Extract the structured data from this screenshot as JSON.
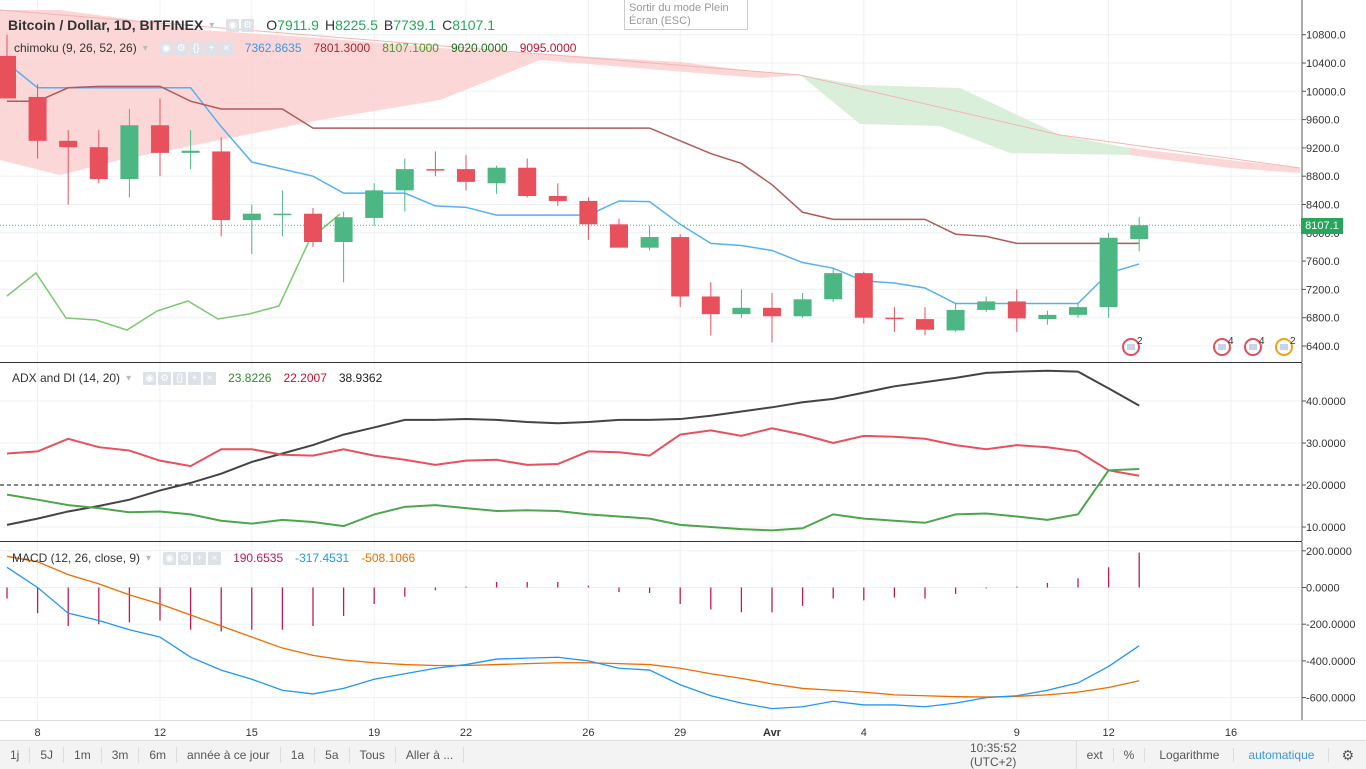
{
  "main": {
    "symbol": "Bitcoin / Dollar, 1D, BITFINEX",
    "ohlc": [
      {
        "label": "O",
        "value": "7911.9"
      },
      {
        "label": "H",
        "value": "8225.5"
      },
      {
        "label": "B",
        "value": "7739.1"
      },
      {
        "label": "C",
        "value": "8107.1"
      }
    ],
    "ichimoku_label": "chimoku (9, 26, 52, 26)",
    "ichimoku_values": [
      {
        "value": "7362.8635",
        "color": "#3a98e0"
      },
      {
        "value": "7801.3000",
        "color": "#a52a2a"
      },
      {
        "value": "8107.1000",
        "color": "#4c9a2a"
      },
      {
        "value": "9020.0000",
        "color": "#1f6d1f"
      },
      {
        "value": "9095.0000",
        "color": "#c8102e"
      }
    ],
    "last_price_tag": "8107.1",
    "price_ticks": [
      "10800.0",
      "10400.0",
      "10000.0",
      "9600.0",
      "9200.0",
      "8800.0",
      "8400.0",
      "8000.0",
      "7600.0",
      "7200.0",
      "6800.0",
      "6400.0"
    ],
    "event_badges": [
      "2",
      "4",
      "4",
      "2"
    ]
  },
  "adx": {
    "label": "ADX and DI (14, 20)",
    "values": [
      {
        "value": "23.8226",
        "color": "#2e8b2e"
      },
      {
        "value": "22.2007",
        "color": "#c8102e"
      },
      {
        "value": "38.9362",
        "color": "#222222"
      }
    ],
    "ticks": [
      "40.0000",
      "30.0000",
      "20.0000",
      "10.0000"
    ]
  },
  "macd": {
    "label": "MACD (12, 26, close, 9)",
    "values": [
      {
        "value": "190.6535",
        "color": "#c2185b"
      },
      {
        "value": "-317.4531",
        "color": "#2196f3"
      },
      {
        "value": "-508.1066",
        "color": "#ef6c00"
      }
    ],
    "ticks": [
      "200.0000",
      "0.0000",
      "-200.0000",
      "-400.0000",
      "-600.0000"
    ]
  },
  "x_axis": {
    "labels": [
      "8",
      "12",
      "15",
      "19",
      "22",
      "26",
      "29",
      "Avr",
      "4",
      "9",
      "12",
      "16"
    ]
  },
  "toast": {
    "line1": "Sortir du mode Plein",
    "line2": "Écran (ESC)"
  },
  "bottom": {
    "timeframes": [
      "1j",
      "5J",
      "1m",
      "3m",
      "6m",
      "année à ce jour",
      "1a",
      "5a",
      "Tous",
      "Aller à ..."
    ],
    "clock": "10:35:52 (UTC+2)",
    "ext": "ext",
    "percent": "%",
    "log": "Logarithme",
    "auto": "automatique"
  },
  "colors": {
    "up": "#4db784",
    "down": "#e8505b",
    "tenkan": "#55b1f0",
    "kijun": "#b05a5a",
    "chikou": "#7bc96f",
    "cloud_red": "#fbd0d0",
    "cloud_green": "#d4ecd4"
  },
  "chart_data": {
    "type": "candlestick",
    "candles": [
      {
        "d": "7 mar",
        "o": 10500,
        "h": 10800,
        "l": 9900,
        "c": 9900
      },
      {
        "d": "8 mar",
        "o": 9920,
        "h": 10100,
        "l": 9050,
        "c": 9300
      },
      {
        "d": "9 mar",
        "o": 9300,
        "h": 9450,
        "l": 8400,
        "c": 9210
      },
      {
        "d": "10 mar",
        "o": 9210,
        "h": 9450,
        "l": 8700,
        "c": 8760
      },
      {
        "d": "11 mar",
        "o": 8760,
        "h": 9750,
        "l": 8500,
        "c": 9520
      },
      {
        "d": "12 mar",
        "o": 9520,
        "h": 9900,
        "l": 8800,
        "c": 9130
      },
      {
        "d": "13 mar",
        "o": 9130,
        "h": 9450,
        "l": 8900,
        "c": 9160
      },
      {
        "d": "14 mar",
        "o": 9150,
        "h": 9350,
        "l": 7950,
        "c": 8180
      },
      {
        "d": "15 mar",
        "o": 8180,
        "h": 8400,
        "l": 7700,
        "c": 8270
      },
      {
        "d": "16 mar",
        "o": 8260,
        "h": 8600,
        "l": 7950,
        "c": 8270
      },
      {
        "d": "17 mar",
        "o": 8270,
        "h": 8350,
        "l": 7800,
        "c": 7870
      },
      {
        "d": "18 mar",
        "o": 7870,
        "h": 8300,
        "l": 7300,
        "c": 8220
      },
      {
        "d": "19 mar",
        "o": 8210,
        "h": 8700,
        "l": 8100,
        "c": 8600
      },
      {
        "d": "20 mar",
        "o": 8600,
        "h": 9050,
        "l": 8300,
        "c": 8900
      },
      {
        "d": "21 mar",
        "o": 8900,
        "h": 9150,
        "l": 8800,
        "c": 8880
      },
      {
        "d": "22 mar",
        "o": 8900,
        "h": 9100,
        "l": 8600,
        "c": 8720
      },
      {
        "d": "23 mar",
        "o": 8700,
        "h": 8950,
        "l": 8550,
        "c": 8920
      },
      {
        "d": "24 mar",
        "o": 8920,
        "h": 9050,
        "l": 8500,
        "c": 8520
      },
      {
        "d": "25 mar",
        "o": 8520,
        "h": 8700,
        "l": 8380,
        "c": 8450
      },
      {
        "d": "26 mar",
        "o": 8450,
        "h": 8500,
        "l": 7900,
        "c": 8120
      },
      {
        "d": "27 mar",
        "o": 8120,
        "h": 8200,
        "l": 7800,
        "c": 7790
      },
      {
        "d": "28 mar",
        "o": 7790,
        "h": 8100,
        "l": 7750,
        "c": 7940
      },
      {
        "d": "29 mar",
        "o": 7940,
        "h": 7980,
        "l": 6950,
        "c": 7100
      },
      {
        "d": "30 mar",
        "o": 7100,
        "h": 7300,
        "l": 6550,
        "c": 6850
      },
      {
        "d": "31 mar",
        "o": 6850,
        "h": 7200,
        "l": 6800,
        "c": 6940
      },
      {
        "d": "1 avr",
        "o": 6940,
        "h": 7150,
        "l": 6450,
        "c": 6820
      },
      {
        "d": "2 avr",
        "o": 6820,
        "h": 7150,
        "l": 6800,
        "c": 7060
      },
      {
        "d": "3 avr",
        "o": 7060,
        "h": 7500,
        "l": 7020,
        "c": 7430
      },
      {
        "d": "4 avr",
        "o": 7430,
        "h": 7450,
        "l": 6720,
        "c": 6800
      },
      {
        "d": "5 avr",
        "o": 6800,
        "h": 6950,
        "l": 6600,
        "c": 6780
      },
      {
        "d": "6 avr",
        "o": 6780,
        "h": 6950,
        "l": 6550,
        "c": 6630
      },
      {
        "d": "7 avr",
        "o": 6620,
        "h": 7000,
        "l": 6600,
        "c": 6910
      },
      {
        "d": "8 avr",
        "o": 6910,
        "h": 7100,
        "l": 6880,
        "c": 7030
      },
      {
        "d": "9 avr",
        "o": 7030,
        "h": 7200,
        "l": 6600,
        "c": 6790
      },
      {
        "d": "10 avr",
        "o": 6780,
        "h": 6900,
        "l": 6700,
        "c": 6840
      },
      {
        "d": "11 avr",
        "o": 6840,
        "h": 7000,
        "l": 6800,
        "c": 6950
      },
      {
        "d": "12 avr",
        "o": 6950,
        "h": 8000,
        "l": 6800,
        "c": 7930
      },
      {
        "d": "13 avr",
        "o": 7911.9,
        "h": 8225.5,
        "l": 7739.1,
        "c": 8107.1
      }
    ],
    "tenkan": [
      10400,
      10050,
      10050,
      10050,
      10050,
      10050,
      10050,
      9500,
      9000,
      8900,
      8800,
      8560,
      8560,
      8560,
      8380,
      8360,
      8250,
      8250,
      8250,
      8250,
      8450,
      8440,
      8120,
      7850,
      7820,
      7750,
      7580,
      7500,
      7320,
      7290,
      7220,
      7000,
      7000,
      7000,
      7000,
      7000,
      7430,
      7560
    ],
    "kijun": [
      9860,
      9860,
      10050,
      10070,
      10070,
      10070,
      9860,
      9750,
      9750,
      9750,
      9480,
      9480,
      9480,
      9480,
      9480,
      9480,
      9480,
      9480,
      9480,
      9480,
      9480,
      9480,
      9300,
      9120,
      8980,
      8680,
      8290,
      8190,
      8190,
      8190,
      8190,
      7980,
      7950,
      7850,
      7850,
      7850,
      7850,
      7850
    ],
    "chikou": [
      7040,
      7430,
      6790,
      6780,
      6620,
      6910,
      7030,
      6790,
      6840,
      6950,
      7930,
      8107
    ],
    "adx_di": {
      "adx": [
        10.5,
        12,
        13.7,
        15,
        16.5,
        18.7,
        20.5,
        22.7,
        25.5,
        27.5,
        29.5,
        32,
        33.7,
        35.5,
        35.5,
        35.7,
        35.5,
        35,
        34.7,
        35,
        35.5,
        35.5,
        35.7,
        36.5,
        37.5,
        38.5,
        39.7,
        40.5,
        42,
        43.5,
        44.5,
        45.5,
        46.7,
        47,
        47.2,
        47,
        43,
        38.9
      ],
      "di_plus": [
        17.7,
        16.5,
        15.2,
        14.5,
        13.5,
        13.7,
        13,
        11.5,
        10.8,
        11.7,
        11.2,
        10.2,
        13,
        14.8,
        15.2,
        14.5,
        13.8,
        14,
        13.8,
        13,
        12.5,
        12,
        10.5,
        10,
        9.5,
        9.2,
        9.7,
        13,
        12,
        11.5,
        11,
        13,
        13.2,
        12.5,
        11.7,
        13,
        23.5,
        23.8
      ],
      "di_minus": [
        27.5,
        28,
        31,
        29,
        28.2,
        25.8,
        24.5,
        28.5,
        28.5,
        27.2,
        27,
        28.5,
        27,
        26,
        24.8,
        25.8,
        26,
        24.8,
        25,
        28,
        27.8,
        27,
        32,
        33,
        31.7,
        33.5,
        32,
        30,
        31.7,
        31.5,
        31,
        29.5,
        28.5,
        29.5,
        29,
        28,
        23.5,
        22.2
      ]
    },
    "macd": {
      "macd": [
        110,
        0,
        -140,
        -180,
        -230,
        -270,
        -380,
        -450,
        -500,
        -560,
        -580,
        -550,
        -500,
        -470,
        -440,
        -420,
        -390,
        -385,
        -380,
        -400,
        -440,
        -450,
        -530,
        -590,
        -630,
        -660,
        -650,
        -620,
        -640,
        -640,
        -650,
        -630,
        -600,
        -590,
        -560,
        -520,
        -430,
        -317
      ],
      "signal": [
        170,
        140,
        70,
        20,
        -40,
        -90,
        -150,
        -210,
        -270,
        -330,
        -370,
        -395,
        -410,
        -420,
        -425,
        -425,
        -420,
        -415,
        -410,
        -410,
        -415,
        -420,
        -440,
        -470,
        -495,
        -525,
        -550,
        -560,
        -570,
        -585,
        -590,
        -595,
        -597,
        -593,
        -585,
        -570,
        -545,
        -508
      ],
      "hist": [
        -60,
        -140,
        -210,
        -200,
        -190,
        -180,
        -230,
        -240,
        -230,
        -230,
        -210,
        -155,
        -90,
        -50,
        -15,
        5,
        30,
        30,
        30,
        10,
        -25,
        -30,
        -90,
        -120,
        -135,
        -135,
        -100,
        -60,
        -70,
        -55,
        -60,
        -35,
        -5,
        5,
        25,
        50,
        110,
        190
      ]
    }
  }
}
